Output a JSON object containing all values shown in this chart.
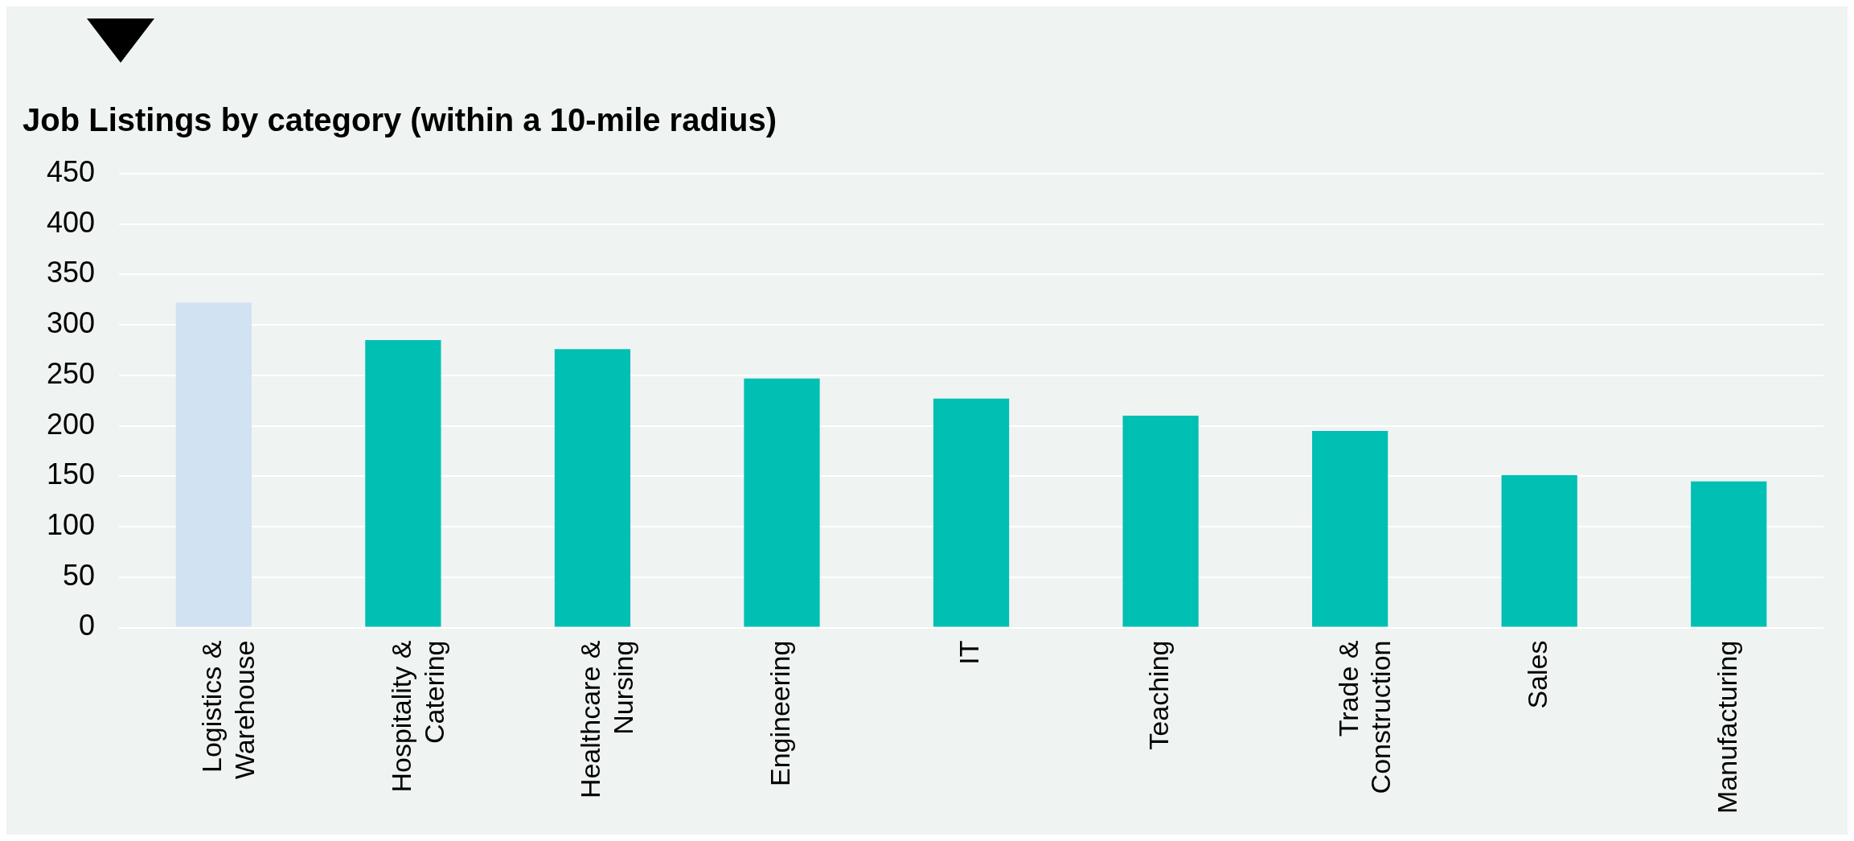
{
  "chart_data": {
    "type": "bar",
    "title": "Job Listings by category (within a 10-mile radius)",
    "categories": [
      "Logistics & Warehouse",
      "Hospitality & Catering",
      "Healthcare & Nursing",
      "Engineering",
      "IT",
      "Teaching",
      "Trade & Construction",
      "Sales",
      "Manufacturing"
    ],
    "values": [
      322,
      285,
      276,
      247,
      227,
      210,
      195,
      151,
      145
    ],
    "colors": [
      "#d1e2f3",
      "#00bfb3",
      "#00bfb3",
      "#00bfb3",
      "#00bfb3",
      "#00bfb3",
      "#00bfb3",
      "#00bfb3",
      "#00bfb3"
    ],
    "ylim": [
      0,
      450
    ],
    "yticks": [
      0,
      50,
      100,
      150,
      200,
      250,
      300,
      350,
      400,
      450
    ],
    "grid": "y",
    "legend": false
  }
}
